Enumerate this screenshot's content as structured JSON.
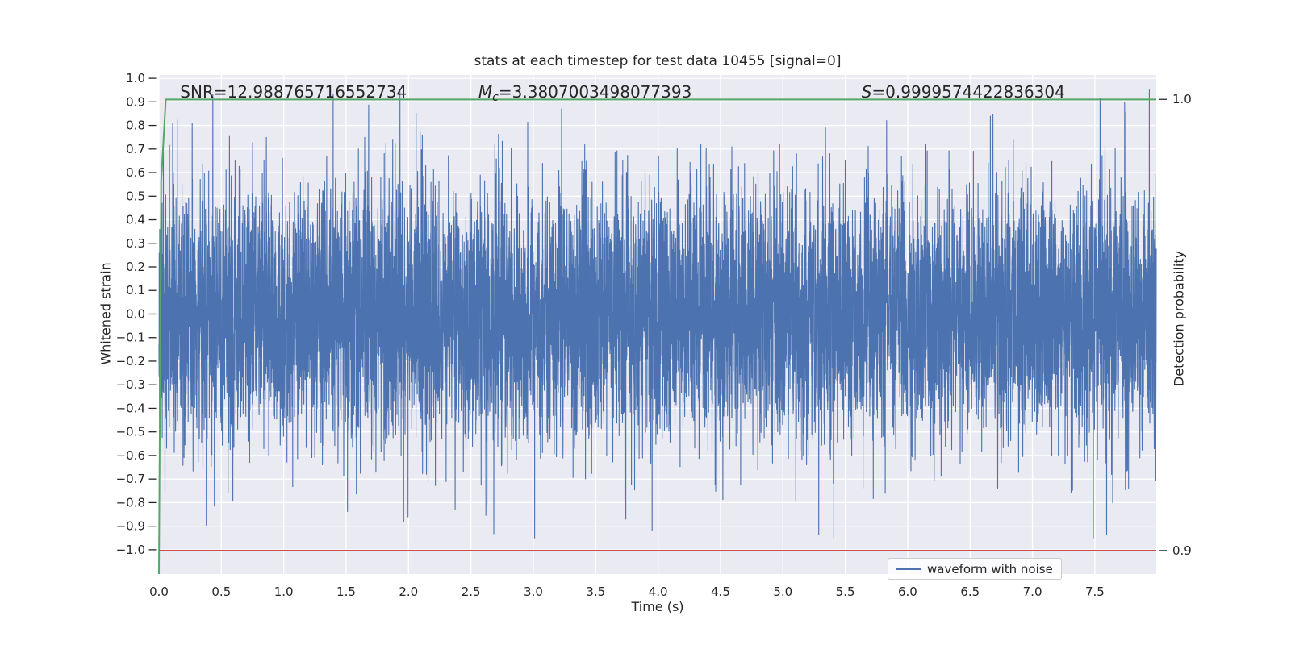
{
  "figure": {
    "bg_color": "#ffffff",
    "plot_bg_color": "#eaeaf2",
    "grid_color": "#ffffff",
    "text_color": "#262626"
  },
  "chart_data": {
    "type": "line",
    "title": "stats at each timestep for test data 10455 [signal=0]",
    "xlabel": "Time (s)",
    "ylabel_left": "Whitened strain",
    "ylabel_right": "Detection probability",
    "xlim": [
      0,
      7.992
    ],
    "ylim_left": [
      -1.103,
      1.014
    ],
    "ylim_right": [
      0.8948,
      1.0054
    ],
    "grid": true,
    "x_ticks": {
      "values": [
        0,
        0.5,
        1,
        1.5,
        2,
        2.5,
        3,
        3.5,
        4,
        4.5,
        5,
        5.5,
        6,
        6.5,
        7,
        7.5
      ],
      "labels": [
        "0.0",
        "0.5",
        "1.0",
        "1.5",
        "2.0",
        "2.5",
        "3.0",
        "3.5",
        "4.0",
        "4.5",
        "5.0",
        "5.5",
        "6.0",
        "6.5",
        "7.0",
        "7.5"
      ]
    },
    "y_ticks_left": {
      "values": [
        1.0,
        0.9,
        0.8,
        0.7,
        0.6,
        0.5,
        0.4,
        0.3,
        0.2,
        0.1,
        0.0,
        -0.1,
        -0.2,
        -0.3,
        -0.4,
        -0.5,
        -0.6,
        -0.7,
        -0.8,
        -0.9,
        -1.0
      ],
      "labels": [
        "1.0",
        "0.9",
        "0.8",
        "0.7",
        "0.6",
        "0.5",
        "0.4",
        "0.3",
        "0.2",
        "0.1",
        "0.0",
        "−0.1",
        "−0.2",
        "−0.3",
        "−0.4",
        "−0.5",
        "−0.6",
        "−0.7",
        "−0.8",
        "−0.9",
        "−1.0"
      ]
    },
    "y_ticks_right": {
      "values": [
        1.0,
        0.9
      ],
      "labels": [
        "1.0",
        "0.9"
      ]
    },
    "stats": {
      "SNR": "12.988765716552734",
      "Mc": "3.3807003498077393",
      "S": "0.9999574422836304"
    },
    "annotations": [
      {
        "kind": "plain",
        "prefix": "SNR",
        "sub": "",
        "rest": "=12.988765716552734",
        "x": 0.17,
        "baseline_strain": 0.918
      },
      {
        "kind": "math",
        "prefix": "M",
        "sub": "c",
        "rest": "=3.3807003498077393",
        "x": 2.56,
        "baseline_strain": 0.918
      },
      {
        "kind": "math",
        "prefix": "S",
        "sub": "",
        "rest": "=0.9999574422836304",
        "x": 5.63,
        "baseline_strain": 0.918
      }
    ],
    "series": [
      {
        "name": "waveform with noise",
        "role": "noise",
        "axis": "left",
        "color": "#4c72b0",
        "x_start": 0,
        "x_end": 7.992,
        "n_points": 7920,
        "sigma": 0.28,
        "clip": 0.95,
        "seed": 20455,
        "description": "zero-mean gaussian whitened-strain noise, envelope ~±0.9"
      },
      {
        "name": "detection probability",
        "role": "line",
        "axis": "right",
        "color": "#55a868",
        "points": [
          [
            0.0,
            0.8948
          ],
          [
            0.018,
            0.982
          ],
          [
            0.055,
            0.99996
          ],
          [
            7.992,
            0.99996
          ]
        ]
      },
      {
        "name": "detection threshold",
        "role": "hline",
        "axis": "right",
        "color": "#c44e52",
        "y": 0.9
      }
    ],
    "legend": {
      "label": "waveform with noise",
      "position": "lower right",
      "line_color": "#4c72b0"
    }
  }
}
